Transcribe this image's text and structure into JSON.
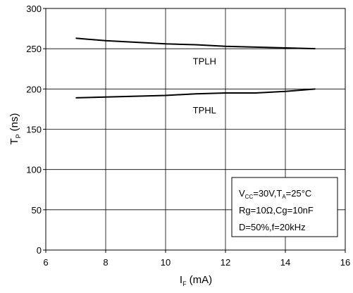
{
  "chart_data": {
    "type": "line",
    "xlabel": {
      "main": "I",
      "sub": "F",
      "unit": "(mA)"
    },
    "ylabel": {
      "main": "T",
      "sub": "P",
      "unit": "(ns)"
    },
    "xlim": [
      6,
      16
    ],
    "ylim": [
      0,
      300
    ],
    "xticks": [
      6,
      8,
      10,
      12,
      14,
      16
    ],
    "yticks": [
      0,
      50,
      100,
      150,
      200,
      250,
      300
    ],
    "grid": true,
    "series": [
      {
        "name": "TPLH",
        "x": [
          7,
          8,
          9,
          10,
          11,
          12,
          13,
          14,
          15
        ],
        "y": [
          263,
          260,
          258,
          256,
          255,
          253,
          252,
          251,
          250
        ]
      },
      {
        "name": "TPHL",
        "x": [
          7,
          8,
          9,
          10,
          11,
          12,
          13,
          14,
          15
        ],
        "y": [
          189,
          190,
          191,
          192,
          194,
          195,
          195,
          197,
          200
        ]
      }
    ],
    "conditions": {
      "line1": {
        "a_main": "V",
        "a_sub": "CC",
        "a_rest": "=30V,T",
        "b_sub": "A",
        "b_rest": "=25°C"
      },
      "line2": "Rg=10Ω,Cg=10nF",
      "line3": "D=50%,f=20kHz"
    }
  }
}
